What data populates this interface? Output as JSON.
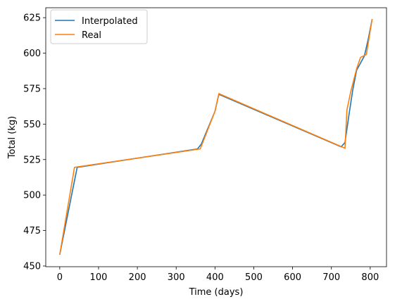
{
  "chart_data": {
    "type": "line",
    "title": "",
    "xlabel": "Time (days)",
    "ylabel": "Total (kg)",
    "xlim": [
      -36,
      842
    ],
    "ylim": [
      449.5,
      632
    ],
    "xticks": [
      0,
      100,
      200,
      300,
      400,
      500,
      600,
      700,
      800
    ],
    "yticks": [
      450,
      475,
      500,
      525,
      550,
      575,
      600,
      625
    ],
    "grid": false,
    "legend": "top-left",
    "series": [
      {
        "name": "Interpolated",
        "color": "#1f77b4",
        "x": [
          0,
          35,
          45,
          355,
          365,
          400,
          410,
          725,
          735,
          745,
          755,
          765,
          775,
          785,
          795,
          805
        ],
        "y": [
          458,
          506,
          519.5,
          532.5,
          536,
          559,
          571,
          534,
          537,
          556,
          574,
          588,
          593,
          598,
          610,
          624
        ]
      },
      {
        "name": "Real",
        "color": "#ff7f0e",
        "x": [
          0,
          38,
          362,
          400,
          410,
          735,
          740,
          750,
          765,
          775,
          790,
          805
        ],
        "y": [
          458,
          519.5,
          532.5,
          559,
          571.5,
          533,
          560,
          573,
          589,
          597,
          599,
          624
        ]
      }
    ]
  }
}
